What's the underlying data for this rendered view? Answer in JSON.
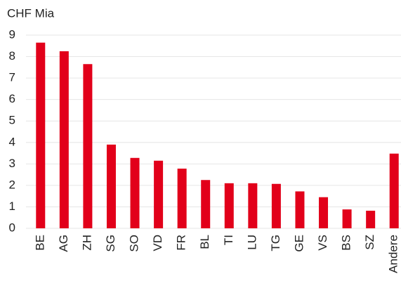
{
  "chart_data": {
    "type": "bar",
    "title": "CHF Mia",
    "categories": [
      "BE",
      "AG",
      "ZH",
      "SG",
      "SO",
      "VD",
      "FR",
      "BL",
      "TI",
      "LU",
      "TG",
      "GE",
      "VS",
      "BS",
      "SZ",
      "Andere"
    ],
    "values": [
      8.65,
      8.25,
      7.65,
      3.9,
      3.28,
      3.15,
      2.78,
      2.25,
      2.1,
      2.1,
      2.07,
      1.72,
      1.45,
      0.88,
      0.82,
      3.48
    ],
    "color": "#e2001a",
    "ylim": [
      0,
      9
    ],
    "yticks": [
      0,
      1,
      2,
      3,
      4,
      5,
      6,
      7,
      8,
      9
    ],
    "grid": true
  }
}
